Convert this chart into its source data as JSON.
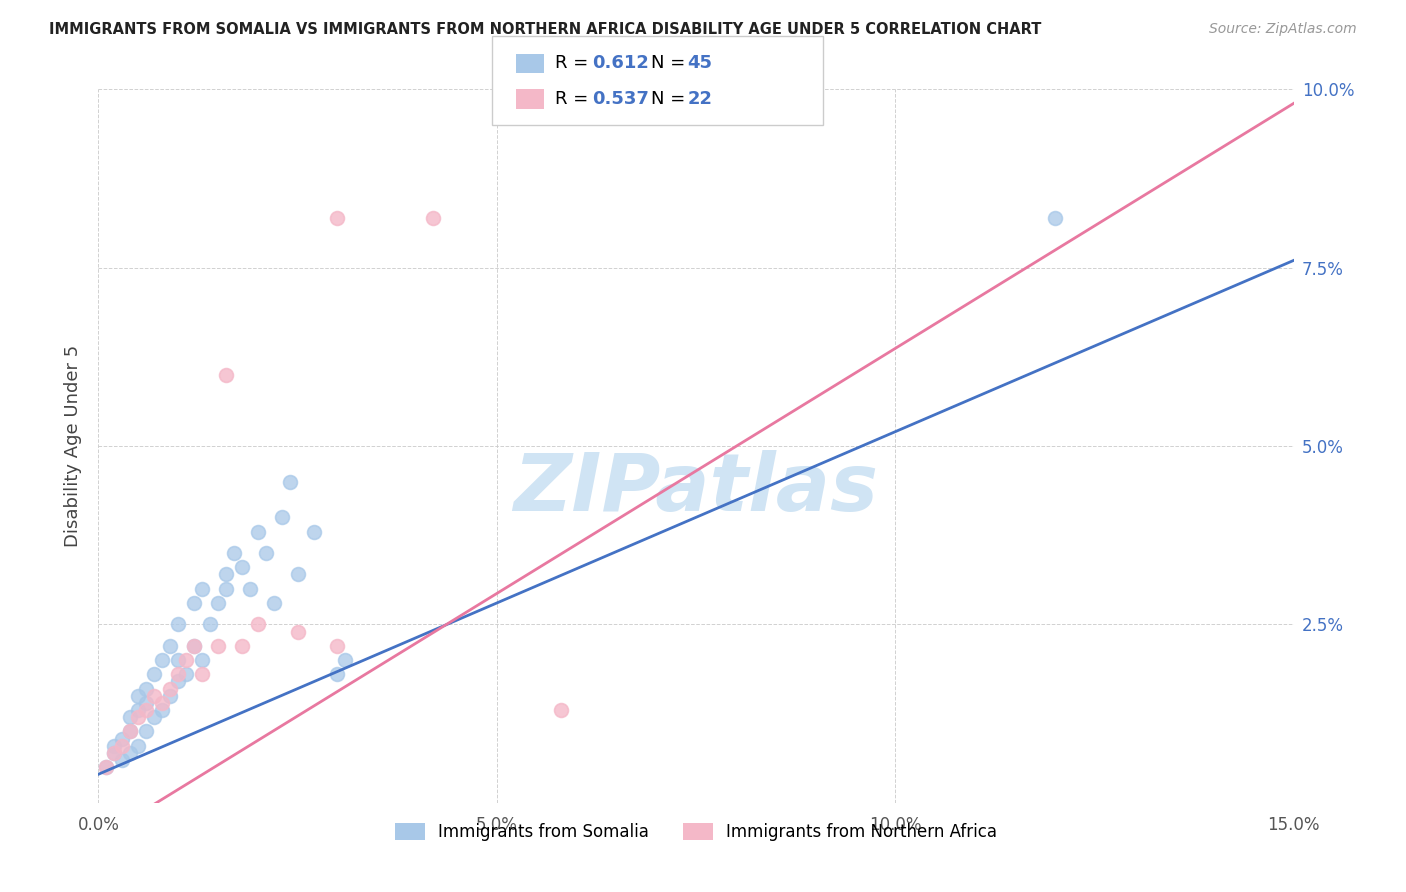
{
  "title": "IMMIGRANTS FROM SOMALIA VS IMMIGRANTS FROM NORTHERN AFRICA DISABILITY AGE UNDER 5 CORRELATION CHART",
  "source": "Source: ZipAtlas.com",
  "ylabel": "Disability Age Under 5",
  "xlim": [
    0.0,
    0.15
  ],
  "ylim": [
    0.0,
    0.1
  ],
  "xticks": [
    0.0,
    0.05,
    0.1,
    0.15
  ],
  "yticks": [
    0.025,
    0.05,
    0.075,
    0.1
  ],
  "ytick_labels": [
    "2.5%",
    "5.0%",
    "7.5%",
    "10.0%"
  ],
  "xtick_labels": [
    "0.0%",
    "5.0%",
    "10.0%",
    "15.0%"
  ],
  "blue_R": "0.612",
  "blue_N": "45",
  "pink_R": "0.537",
  "pink_N": "22",
  "blue_color": "#a8c8e8",
  "pink_color": "#f4b8c8",
  "blue_line_color": "#4472c4",
  "pink_line_color": "#e878a0",
  "blue_line_color_label": "#4472c4",
  "watermark_color": "#d0e4f4",
  "legend_label_blue": "Immigrants from Somalia",
  "legend_label_pink": "Immigrants from Northern Africa",
  "blue_points": [
    [
      0.001,
      0.005
    ],
    [
      0.002,
      0.007
    ],
    [
      0.002,
      0.008
    ],
    [
      0.003,
      0.006
    ],
    [
      0.003,
      0.009
    ],
    [
      0.004,
      0.007
    ],
    [
      0.004,
      0.01
    ],
    [
      0.004,
      0.012
    ],
    [
      0.005,
      0.008
    ],
    [
      0.005,
      0.013
    ],
    [
      0.005,
      0.015
    ],
    [
      0.006,
      0.01
    ],
    [
      0.006,
      0.014
    ],
    [
      0.006,
      0.016
    ],
    [
      0.007,
      0.012
    ],
    [
      0.007,
      0.018
    ],
    [
      0.008,
      0.013
    ],
    [
      0.008,
      0.02
    ],
    [
      0.009,
      0.015
    ],
    [
      0.009,
      0.022
    ],
    [
      0.01,
      0.017
    ],
    [
      0.01,
      0.02
    ],
    [
      0.01,
      0.025
    ],
    [
      0.011,
      0.018
    ],
    [
      0.012,
      0.022
    ],
    [
      0.012,
      0.028
    ],
    [
      0.013,
      0.02
    ],
    [
      0.013,
      0.03
    ],
    [
      0.014,
      0.025
    ],
    [
      0.015,
      0.028
    ],
    [
      0.016,
      0.032
    ],
    [
      0.016,
      0.03
    ],
    [
      0.017,
      0.035
    ],
    [
      0.018,
      0.033
    ],
    [
      0.019,
      0.03
    ],
    [
      0.02,
      0.038
    ],
    [
      0.021,
      0.035
    ],
    [
      0.022,
      0.028
    ],
    [
      0.023,
      0.04
    ],
    [
      0.024,
      0.045
    ],
    [
      0.025,
      0.032
    ],
    [
      0.027,
      0.038
    ],
    [
      0.03,
      0.018
    ],
    [
      0.031,
      0.02
    ],
    [
      0.12,
      0.082
    ]
  ],
  "pink_points": [
    [
      0.001,
      0.005
    ],
    [
      0.002,
      0.007
    ],
    [
      0.003,
      0.008
    ],
    [
      0.004,
      0.01
    ],
    [
      0.005,
      0.012
    ],
    [
      0.006,
      0.013
    ],
    [
      0.007,
      0.015
    ],
    [
      0.008,
      0.014
    ],
    [
      0.009,
      0.016
    ],
    [
      0.01,
      0.018
    ],
    [
      0.011,
      0.02
    ],
    [
      0.012,
      0.022
    ],
    [
      0.013,
      0.018
    ],
    [
      0.015,
      0.022
    ],
    [
      0.016,
      0.06
    ],
    [
      0.018,
      0.022
    ],
    [
      0.02,
      0.025
    ],
    [
      0.025,
      0.024
    ],
    [
      0.03,
      0.022
    ],
    [
      0.042,
      0.082
    ],
    [
      0.03,
      0.082
    ],
    [
      0.058,
      0.013
    ]
  ]
}
